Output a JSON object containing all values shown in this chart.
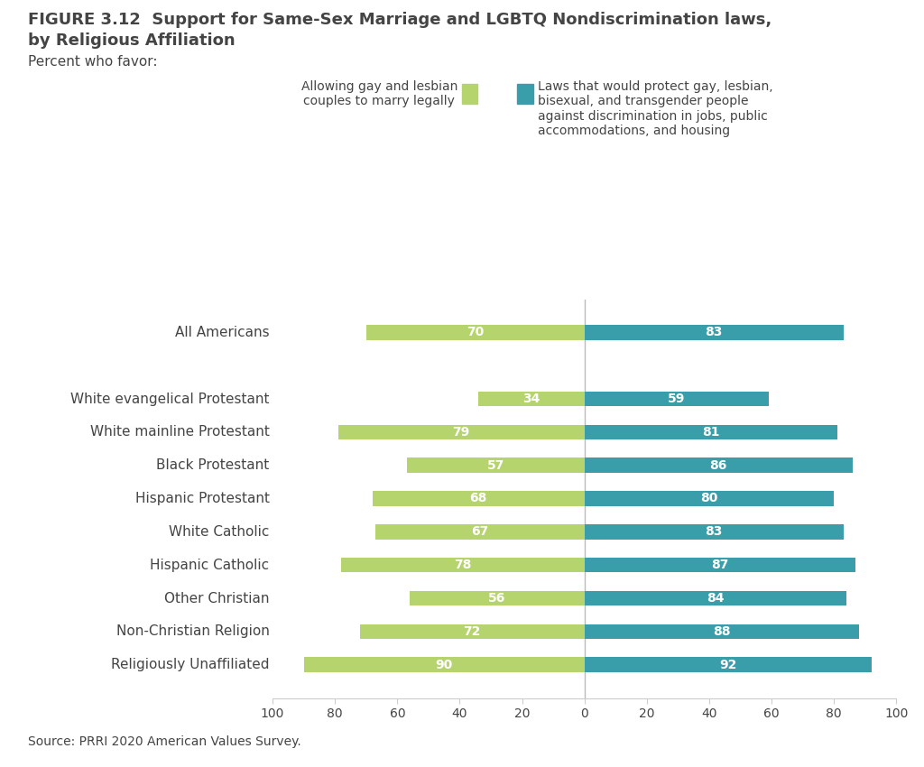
{
  "title_line1": "FIGURE 3.12  Support for Same-Sex Marriage and LGBTQ Nondiscrimination laws,",
  "title_line2": "by Religious Affiliation",
  "subtitle": "Percent who favor:",
  "categories": [
    "All Americans",
    "White evangelical Protestant",
    "White mainline Protestant",
    "Black Protestant",
    "Hispanic Protestant",
    "White Catholic",
    "Hispanic Catholic",
    "Other Christian",
    "Non-Christian Religion",
    "Religiously Unaffiliated"
  ],
  "green_values": [
    70,
    34,
    79,
    57,
    68,
    67,
    78,
    56,
    72,
    90
  ],
  "blue_values": [
    83,
    59,
    81,
    86,
    80,
    83,
    87,
    84,
    88,
    92
  ],
  "green_color": "#b5d46e",
  "blue_color": "#3a9daa",
  "background_color": "#ffffff",
  "text_color": "#444444",
  "legend_green_label": "Allowing gay and lesbian\ncouples to marry legally",
  "legend_blue_label": "Laws that would protect gay, lesbian,\nbisexual, and transgender people\nagainst discrimination in jobs, public\naccommodations, and housing",
  "source": "Source: PRRI 2020 American Values Survey.",
  "bar_height": 0.45,
  "label_fontsize": 10,
  "tick_fontsize": 10,
  "category_fontsize": 11,
  "title_fontsize": 13,
  "subtitle_fontsize": 11
}
